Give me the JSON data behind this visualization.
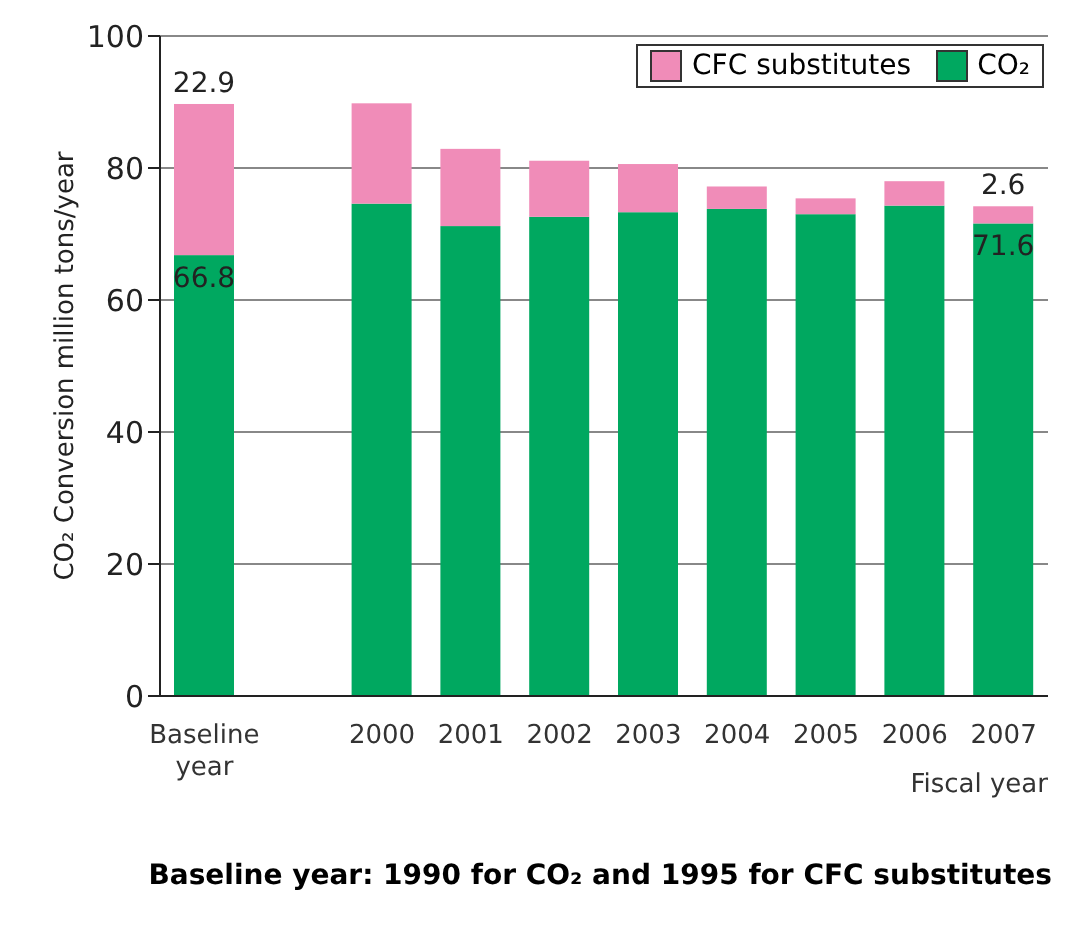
{
  "chart_data": {
    "type": "bar",
    "stacked": true,
    "categories": [
      "Baseline year",
      null,
      "2000",
      "2001",
      "2002",
      "2003",
      "2004",
      "2005",
      "2006",
      "2007"
    ],
    "series": [
      {
        "name": "CO₂",
        "color": "#00a860",
        "values": [
          66.8,
          null,
          74.6,
          71.2,
          72.6,
          73.3,
          73.8,
          73.0,
          74.3,
          71.6
        ],
        "value_labels": [
          "66.8",
          null,
          null,
          null,
          null,
          null,
          null,
          null,
          null,
          "71.6"
        ]
      },
      {
        "name": "CFC substitutes",
        "color": "#f08cb8",
        "values": [
          22.9,
          null,
          15.2,
          11.7,
          8.5,
          7.3,
          3.4,
          2.4,
          3.7,
          2.6
        ],
        "value_labels": [
          "22.9",
          null,
          null,
          null,
          null,
          null,
          null,
          null,
          null,
          "2.6"
        ]
      }
    ],
    "ylim": [
      0,
      100
    ],
    "yticks": [
      0,
      20,
      40,
      60,
      80,
      100
    ],
    "grid": "y",
    "legend": "top right",
    "xlabel": "Fiscal year",
    "ylabel": "CO₂ Conversion million tons/year",
    "annotations": [
      "Baseline year: 1990 for CO₂ and 1995 for CFC substitutes"
    ]
  }
}
